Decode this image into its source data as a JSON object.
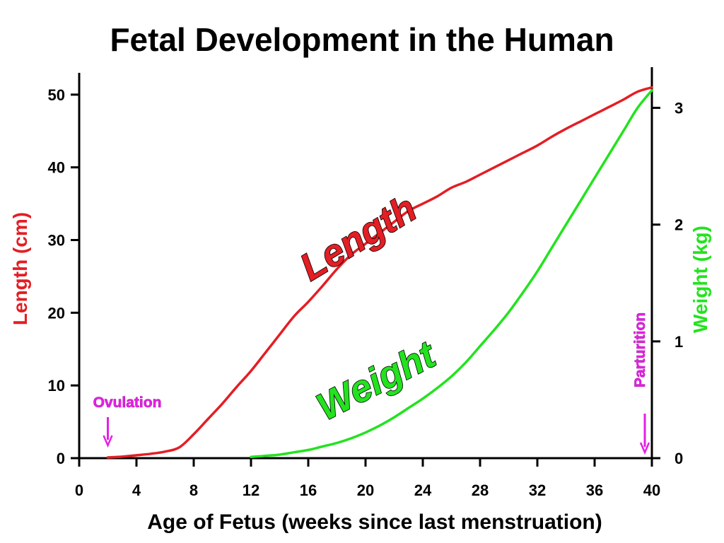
{
  "chart_data": {
    "type": "line",
    "title": "Fetal Development in the Human",
    "xlabel": "Age of Fetus (weeks since last menstruation)",
    "ylabel": "Length (cm)",
    "ylabel_right": "Weight (kg)",
    "xlim": [
      0,
      40
    ],
    "ylim": [
      0,
      53
    ],
    "ylim_right": [
      0,
      3.3
    ],
    "x_ticks": [
      "0",
      "4",
      "8",
      "12",
      "16",
      "20",
      "24",
      "28",
      "32",
      "36",
      "40"
    ],
    "y_ticks": [
      "0",
      "10",
      "20",
      "30",
      "40",
      "50"
    ],
    "y_ticks_right": [
      "0",
      "1",
      "2",
      "3"
    ],
    "grid": false,
    "colors": {
      "length": "#e31e24",
      "weight": "#22e31e",
      "annotation": "#e61ee6",
      "axis": "#000000"
    },
    "series": [
      {
        "name": "Length",
        "axis": "left",
        "x": [
          2,
          3,
          4,
          5,
          6,
          7,
          8,
          9,
          10,
          11,
          12,
          13,
          14,
          15,
          16,
          17,
          18,
          19,
          20,
          21,
          22,
          23,
          24,
          25,
          26,
          27,
          28,
          29,
          30,
          31,
          32,
          33,
          34,
          35,
          36,
          37,
          38,
          39,
          40
        ],
        "values": [
          0.1,
          0.2,
          0.4,
          0.6,
          0.9,
          1.5,
          3.3,
          5.4,
          7.5,
          9.8,
          12.0,
          14.5,
          17.0,
          19.5,
          21.5,
          23.7,
          26.0,
          28.0,
          29.5,
          31.0,
          32.5,
          34.0,
          35.0,
          36.0,
          37.2,
          38.0,
          39.0,
          40.0,
          41.0,
          42.0,
          43.0,
          44.2,
          45.3,
          46.3,
          47.3,
          48.3,
          49.3,
          50.4,
          51.0
        ]
      },
      {
        "name": "Weight",
        "axis": "right",
        "x": [
          12,
          13,
          14,
          15,
          16,
          17,
          18,
          19,
          20,
          21,
          22,
          23,
          24,
          25,
          26,
          27,
          28,
          29,
          30,
          31,
          32,
          33,
          34,
          35,
          36,
          37,
          38,
          39,
          40
        ],
        "values": [
          0.01,
          0.02,
          0.03,
          0.05,
          0.07,
          0.1,
          0.13,
          0.17,
          0.22,
          0.28,
          0.35,
          0.43,
          0.51,
          0.6,
          0.7,
          0.82,
          0.96,
          1.1,
          1.25,
          1.42,
          1.6,
          1.8,
          2.0,
          2.2,
          2.4,
          2.6,
          2.8,
          3.0,
          3.15
        ]
      }
    ],
    "annotations": [
      {
        "text": "Length",
        "series": "Length"
      },
      {
        "text": "Weight",
        "series": "Weight"
      },
      {
        "text": "Ovulation",
        "x": 2
      },
      {
        "text": "Parturition",
        "x": 40
      }
    ]
  }
}
